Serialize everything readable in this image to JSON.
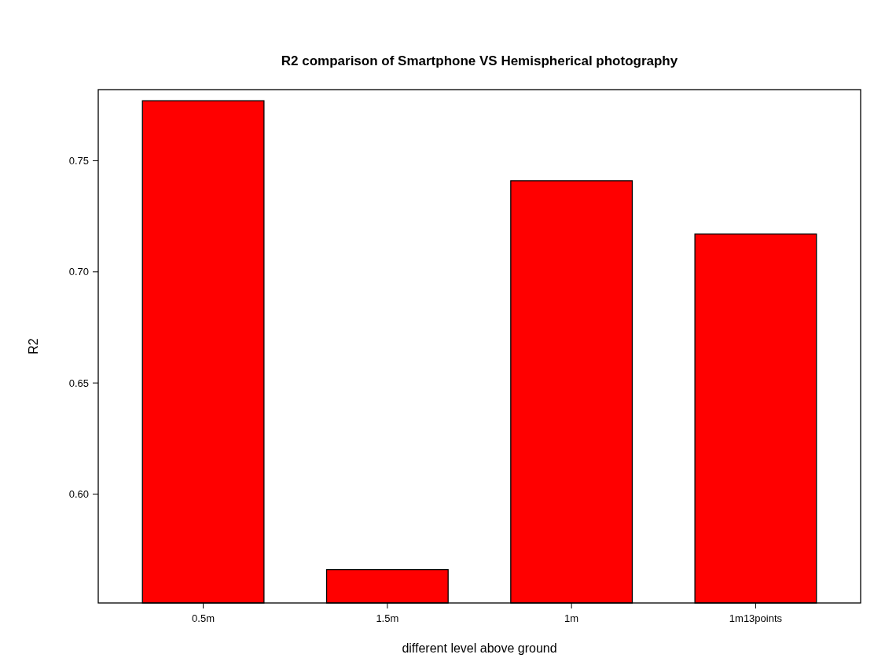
{
  "chart_data": {
    "type": "bar",
    "title": "R2 comparison of Smartphone VS Hemispherical photography",
    "xlabel": "different level above ground",
    "ylabel": "R2",
    "categories": [
      "0.5m",
      "1.5m",
      "1m",
      "1m13points"
    ],
    "values": [
      0.777,
      0.566,
      0.741,
      0.717
    ],
    "color": "#ff0000",
    "ylim": [
      0.551,
      0.782
    ],
    "yticks": [
      {
        "value": 0.6,
        "label": "0.60"
      },
      {
        "value": 0.65,
        "label": "0.65"
      },
      {
        "value": 0.7,
        "label": "0.70"
      },
      0.75
    ],
    "grid": false
  }
}
